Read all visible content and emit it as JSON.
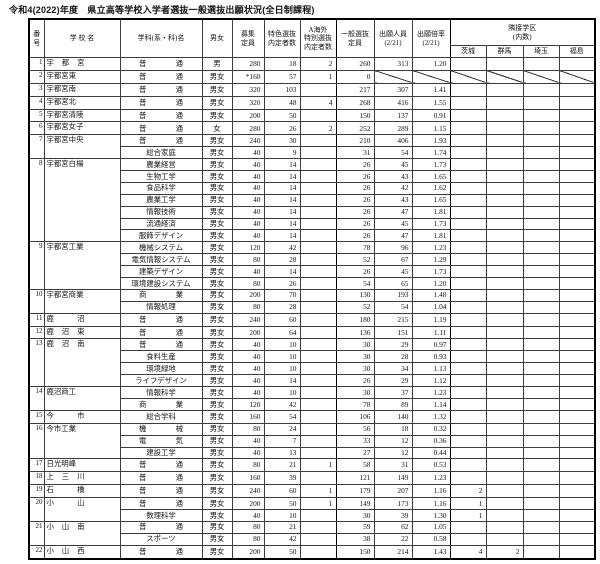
{
  "title": "令和4(2022)年度　県立高等学校入学者選抜一般選抜出願状況(全日制課程)",
  "table": {
    "headers": {
      "number": "番\n号",
      "school": "学 校 名",
      "dept": "学科(系・科)名",
      "gender": "男女",
      "capacity": "募集\n定員",
      "tokushoku": "特色選抜\n内定者数",
      "overseas": "A海外\n特別選抜\n内定者数",
      "general": "一般選抜\n定員",
      "applicants": "出願人員\n(2/21)",
      "ratio": "出願倍率\n(2/21)",
      "adjacent": "隣接学区\n(内数)",
      "prefectures": [
        "茨城",
        "群馬",
        "埼玉",
        "福島"
      ]
    },
    "schools": [
      {
        "no": "1",
        "name": "宇都宮",
        "rows": [
          {
            "dept": "普通",
            "mf": "男",
            "cap": "280",
            "tok": "18",
            "ovs": "2",
            "gen": "260",
            "app": "313",
            "ratio": "1.20",
            "ib": "",
            "gm": "",
            "st": "",
            "fk": ""
          }
        ]
      },
      {
        "no": "2",
        "name": "宇都宮東",
        "rows": [
          {
            "dept": "普通",
            "mf": "男女",
            "cap": "*160",
            "tok": "57",
            "ovs": "1",
            "gen": "0",
            "app": "",
            "ratio": "",
            "ib": "",
            "gm": "",
            "st": "",
            "fk": "",
            "diag": true
          }
        ]
      },
      {
        "no": "3",
        "name": "宇都宮南",
        "rows": [
          {
            "dept": "普通",
            "mf": "男女",
            "cap": "320",
            "tok": "103",
            "ovs": "",
            "gen": "217",
            "app": "307",
            "ratio": "1.41",
            "ib": "",
            "gm": "",
            "st": "",
            "fk": ""
          }
        ]
      },
      {
        "no": "4",
        "name": "宇都宮北",
        "rows": [
          {
            "dept": "普通",
            "mf": "男女",
            "cap": "320",
            "tok": "48",
            "ovs": "4",
            "gen": "268",
            "app": "416",
            "ratio": "1.55",
            "ib": "",
            "gm": "",
            "st": "",
            "fk": ""
          }
        ]
      },
      {
        "no": "5",
        "name": "宇都宮清陵",
        "rows": [
          {
            "dept": "普通",
            "mf": "男女",
            "cap": "200",
            "tok": "50",
            "ovs": "",
            "gen": "150",
            "app": "137",
            "ratio": "0.91",
            "ib": "",
            "gm": "",
            "st": "",
            "fk": ""
          }
        ]
      },
      {
        "no": "6",
        "name": "宇都宮女子",
        "rows": [
          {
            "dept": "普通",
            "mf": "女",
            "cap": "280",
            "tok": "26",
            "ovs": "2",
            "gen": "252",
            "app": "289",
            "ratio": "1.15",
            "ib": "",
            "gm": "",
            "st": "",
            "fk": ""
          }
        ]
      },
      {
        "no": "7",
        "name": "宇都宮中央",
        "rows": [
          {
            "dept": "普通",
            "mf": "男女",
            "cap": "240",
            "tok": "30",
            "ovs": "",
            "gen": "210",
            "app": "406",
            "ratio": "1.93",
            "ib": "",
            "gm": "",
            "st": "",
            "fk": ""
          },
          {
            "dept": "総合家庭",
            "mf": "男女",
            "cap": "40",
            "tok": "9",
            "ovs": "",
            "gen": "31",
            "app": "54",
            "ratio": "1.74",
            "ib": "",
            "gm": "",
            "st": "",
            "fk": ""
          }
        ]
      },
      {
        "no": "8",
        "name": "宇都宮白楊",
        "rows": [
          {
            "dept": "農業経営",
            "mf": "男女",
            "cap": "40",
            "tok": "14",
            "ovs": "",
            "gen": "26",
            "app": "45",
            "ratio": "1.73",
            "ib": "",
            "gm": "",
            "st": "",
            "fk": ""
          },
          {
            "dept": "生物工学",
            "mf": "男女",
            "cap": "40",
            "tok": "14",
            "ovs": "",
            "gen": "26",
            "app": "43",
            "ratio": "1.65",
            "ib": "",
            "gm": "",
            "st": "",
            "fk": ""
          },
          {
            "dept": "食品科学",
            "mf": "男女",
            "cap": "40",
            "tok": "14",
            "ovs": "",
            "gen": "26",
            "app": "42",
            "ratio": "1.62",
            "ib": "",
            "gm": "",
            "st": "",
            "fk": ""
          },
          {
            "dept": "農業工学",
            "mf": "男女",
            "cap": "40",
            "tok": "14",
            "ovs": "",
            "gen": "26",
            "app": "43",
            "ratio": "1.65",
            "ib": "",
            "gm": "",
            "st": "",
            "fk": ""
          },
          {
            "dept": "情報技術",
            "mf": "男女",
            "cap": "40",
            "tok": "14",
            "ovs": "",
            "gen": "26",
            "app": "47",
            "ratio": "1.81",
            "ib": "",
            "gm": "",
            "st": "",
            "fk": ""
          },
          {
            "dept": "流通経済",
            "mf": "男女",
            "cap": "40",
            "tok": "14",
            "ovs": "",
            "gen": "26",
            "app": "45",
            "ratio": "1.73",
            "ib": "",
            "gm": "",
            "st": "",
            "fk": ""
          },
          {
            "dept": "服飾デザイン",
            "mf": "男女",
            "cap": "40",
            "tok": "14",
            "ovs": "",
            "gen": "26",
            "app": "47",
            "ratio": "1.81",
            "ib": "",
            "gm": "",
            "st": "",
            "fk": ""
          }
        ]
      },
      {
        "no": "9",
        "name": "宇都宮工業",
        "rows": [
          {
            "dept": "機械システム",
            "mf": "男女",
            "cap": "120",
            "tok": "42",
            "ovs": "",
            "gen": "78",
            "app": "96",
            "ratio": "1.23",
            "ib": "",
            "gm": "",
            "st": "",
            "fk": ""
          },
          {
            "dept": "電気情報システム",
            "mf": "男女",
            "cap": "80",
            "tok": "28",
            "ovs": "",
            "gen": "52",
            "app": "67",
            "ratio": "1.29",
            "ib": "",
            "gm": "",
            "st": "",
            "fk": ""
          },
          {
            "dept": "建築デザイン",
            "mf": "男女",
            "cap": "40",
            "tok": "14",
            "ovs": "",
            "gen": "26",
            "app": "45",
            "ratio": "1.73",
            "ib": "",
            "gm": "",
            "st": "",
            "fk": ""
          },
          {
            "dept": "環境建設システム",
            "mf": "男女",
            "cap": "80",
            "tok": "26",
            "ovs": "",
            "gen": "54",
            "app": "65",
            "ratio": "1.20",
            "ib": "",
            "gm": "",
            "st": "",
            "fk": ""
          }
        ]
      },
      {
        "no": "10",
        "name": "宇都宮商業",
        "rows": [
          {
            "dept": "商業",
            "mf": "男女",
            "cap": "200",
            "tok": "70",
            "ovs": "",
            "gen": "130",
            "app": "193",
            "ratio": "1.48",
            "ib": "",
            "gm": "",
            "st": "",
            "fk": ""
          },
          {
            "dept": "情報処理",
            "mf": "男女",
            "cap": "80",
            "tok": "28",
            "ovs": "",
            "gen": "52",
            "app": "54",
            "ratio": "1.04",
            "ib": "",
            "gm": "",
            "st": "",
            "fk": ""
          }
        ]
      },
      {
        "no": "11",
        "name": "鹿沼",
        "rows": [
          {
            "dept": "普通",
            "mf": "男女",
            "cap": "240",
            "tok": "60",
            "ovs": "",
            "gen": "180",
            "app": "215",
            "ratio": "1.19",
            "ib": "",
            "gm": "",
            "st": "",
            "fk": ""
          }
        ]
      },
      {
        "no": "12",
        "name": "鹿沼東",
        "rows": [
          {
            "dept": "普通",
            "mf": "男女",
            "cap": "200",
            "tok": "64",
            "ovs": "",
            "gen": "136",
            "app": "151",
            "ratio": "1.11",
            "ib": "",
            "gm": "",
            "st": "",
            "fk": ""
          }
        ]
      },
      {
        "no": "13",
        "name": "鹿沼南",
        "rows": [
          {
            "dept": "普通",
            "mf": "男女",
            "cap": "40",
            "tok": "10",
            "ovs": "",
            "gen": "30",
            "app": "29",
            "ratio": "0.97",
            "ib": "",
            "gm": "",
            "st": "",
            "fk": ""
          },
          {
            "dept": "食料生産",
            "mf": "男女",
            "cap": "40",
            "tok": "10",
            "ovs": "",
            "gen": "30",
            "app": "28",
            "ratio": "0.93",
            "ib": "",
            "gm": "",
            "st": "",
            "fk": ""
          },
          {
            "dept": "環境緑地",
            "mf": "男女",
            "cap": "40",
            "tok": "10",
            "ovs": "",
            "gen": "30",
            "app": "34",
            "ratio": "1.13",
            "ib": "",
            "gm": "",
            "st": "",
            "fk": ""
          },
          {
            "dept": "ライフデザイン",
            "mf": "男女",
            "cap": "40",
            "tok": "14",
            "ovs": "",
            "gen": "26",
            "app": "29",
            "ratio": "1.12",
            "ib": "",
            "gm": "",
            "st": "",
            "fk": ""
          }
        ]
      },
      {
        "no": "14",
        "name": "鹿沼商工",
        "rows": [
          {
            "dept": "情報科学",
            "mf": "男女",
            "cap": "40",
            "tok": "10",
            "ovs": "",
            "gen": "30",
            "app": "37",
            "ratio": "1.23",
            "ib": "",
            "gm": "",
            "st": "",
            "fk": ""
          },
          {
            "dept": "商業",
            "mf": "男女",
            "cap": "120",
            "tok": "42",
            "ovs": "",
            "gen": "78",
            "app": "89",
            "ratio": "1.14",
            "ib": "",
            "gm": "",
            "st": "",
            "fk": ""
          }
        ]
      },
      {
        "no": "15",
        "name": "今市",
        "rows": [
          {
            "dept": "総合学科",
            "mf": "男女",
            "cap": "160",
            "tok": "54",
            "ovs": "",
            "gen": "106",
            "app": "140",
            "ratio": "1.32",
            "ib": "",
            "gm": "",
            "st": "",
            "fk": ""
          }
        ]
      },
      {
        "no": "16",
        "name": "今市工業",
        "rows": [
          {
            "dept": "機械",
            "mf": "男女",
            "cap": "80",
            "tok": "24",
            "ovs": "",
            "gen": "56",
            "app": "18",
            "ratio": "0.32",
            "ib": "",
            "gm": "",
            "st": "",
            "fk": ""
          },
          {
            "dept": "電気",
            "mf": "男女",
            "cap": "40",
            "tok": "7",
            "ovs": "",
            "gen": "33",
            "app": "12",
            "ratio": "0.36",
            "ib": "",
            "gm": "",
            "st": "",
            "fk": ""
          },
          {
            "dept": "建設工学",
            "mf": "男女",
            "cap": "40",
            "tok": "13",
            "ovs": "",
            "gen": "27",
            "app": "12",
            "ratio": "0.44",
            "ib": "",
            "gm": "",
            "st": "",
            "fk": ""
          }
        ]
      },
      {
        "no": "17",
        "name": "日光明峰",
        "rows": [
          {
            "dept": "普通",
            "mf": "男女",
            "cap": "80",
            "tok": "21",
            "ovs": "1",
            "gen": "58",
            "app": "31",
            "ratio": "0.53",
            "ib": "",
            "gm": "",
            "st": "",
            "fk": ""
          }
        ]
      },
      {
        "no": "18",
        "name": "上三川",
        "rows": [
          {
            "dept": "普通",
            "mf": "男女",
            "cap": "160",
            "tok": "39",
            "ovs": "",
            "gen": "121",
            "app": "149",
            "ratio": "1.23",
            "ib": "",
            "gm": "",
            "st": "",
            "fk": ""
          }
        ]
      },
      {
        "no": "19",
        "name": "石橋",
        "rows": [
          {
            "dept": "普通",
            "mf": "男女",
            "cap": "240",
            "tok": "60",
            "ovs": "1",
            "gen": "179",
            "app": "207",
            "ratio": "1.16",
            "ib": "2",
            "gm": "",
            "st": "",
            "fk": ""
          }
        ]
      },
      {
        "no": "20",
        "name": "小山",
        "rows": [
          {
            "dept": "普通",
            "mf": "男女",
            "cap": "200",
            "tok": "50",
            "ovs": "1",
            "gen": "149",
            "app": "173",
            "ratio": "1.16",
            "ib": "1",
            "gm": "",
            "st": "",
            "fk": ""
          },
          {
            "dept": "数理科学",
            "mf": "男女",
            "cap": "40",
            "tok": "10",
            "ovs": "",
            "gen": "30",
            "app": "39",
            "ratio": "1.30",
            "ib": "1",
            "gm": "",
            "st": "",
            "fk": ""
          }
        ]
      },
      {
        "no": "21",
        "name": "小山南",
        "rows": [
          {
            "dept": "普通",
            "mf": "男女",
            "cap": "80",
            "tok": "21",
            "ovs": "",
            "gen": "59",
            "app": "62",
            "ratio": "1.05",
            "ib": "",
            "gm": "",
            "st": "",
            "fk": ""
          },
          {
            "dept": "スポーツ",
            "mf": "男女",
            "cap": "80",
            "tok": "42",
            "ovs": "",
            "gen": "38",
            "app": "22",
            "ratio": "0.58",
            "ib": "",
            "gm": "",
            "st": "",
            "fk": ""
          }
        ]
      },
      {
        "no": "22",
        "name": "小山西",
        "rows": [
          {
            "dept": "普通",
            "mf": "男女",
            "cap": "200",
            "tok": "50",
            "ovs": "",
            "gen": "150",
            "app": "214",
            "ratio": "1.43",
            "ib": "4",
            "gm": "2",
            "st": "",
            "fk": ""
          }
        ]
      }
    ]
  }
}
